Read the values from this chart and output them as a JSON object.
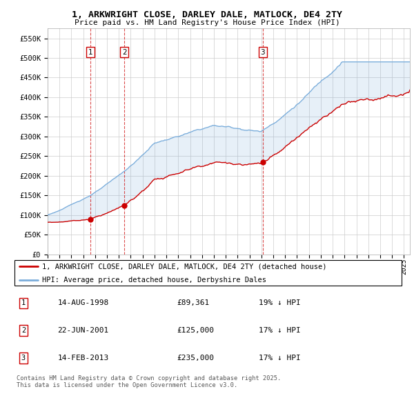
{
  "title1": "1, ARKWRIGHT CLOSE, DARLEY DALE, MATLOCK, DE4 2TY",
  "title2": "Price paid vs. HM Land Registry's House Price Index (HPI)",
  "ylim": [
    0,
    575000
  ],
  "yticks": [
    0,
    50000,
    100000,
    150000,
    200000,
    250000,
    300000,
    350000,
    400000,
    450000,
    500000,
    550000
  ],
  "ytick_labels": [
    "£0",
    "£50K",
    "£100K",
    "£150K",
    "£200K",
    "£250K",
    "£300K",
    "£350K",
    "£400K",
    "£450K",
    "£500K",
    "£550K"
  ],
  "legend_entry1": "1, ARKWRIGHT CLOSE, DARLEY DALE, MATLOCK, DE4 2TY (detached house)",
  "legend_entry2": "HPI: Average price, detached house, Derbyshire Dales",
  "sale1_label": "1",
  "sale1_date": "14-AUG-1998",
  "sale1_price": "£89,361",
  "sale1_hpi": "19% ↓ HPI",
  "sale2_label": "2",
  "sale2_date": "22-JUN-2001",
  "sale2_price": "£125,000",
  "sale2_hpi": "17% ↓ HPI",
  "sale3_label": "3",
  "sale3_date": "14-FEB-2013",
  "sale3_price": "£235,000",
  "sale3_hpi": "17% ↓ HPI",
  "footnote": "Contains HM Land Registry data © Crown copyright and database right 2025.\nThis data is licensed under the Open Government Licence v3.0.",
  "red_color": "#cc0000",
  "blue_color": "#7aaddb",
  "bg_color": "#ffffff",
  "grid_color": "#cccccc",
  "sale_vline_color": "#cc0000",
  "sale1_x": 1998.62,
  "sale2_x": 2001.47,
  "sale3_x": 2013.12,
  "sale1_y": 89361,
  "sale2_y": 125000,
  "sale3_y": 235000,
  "xlim_start": 1995.0,
  "xlim_end": 2025.5
}
